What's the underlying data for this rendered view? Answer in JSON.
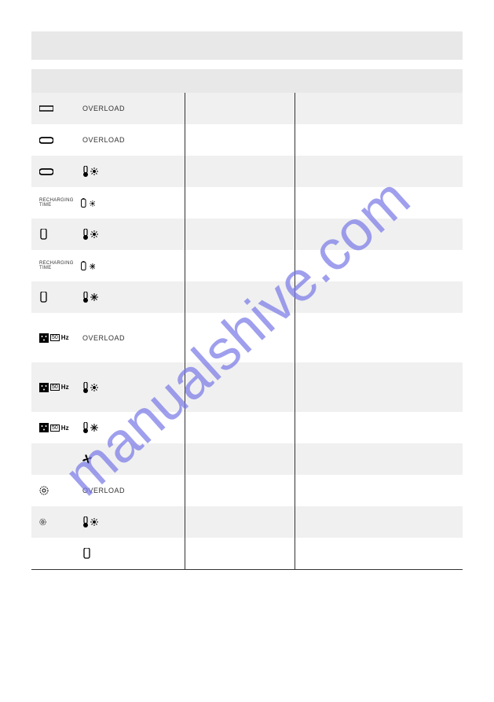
{
  "colors": {
    "row_gray": "#f0f0f0",
    "row_white": "#ffffff",
    "title_gray": "#e8e8e8",
    "border": "#333333",
    "watermark": "#7b7be8"
  },
  "watermark_text": "manualshive.com",
  "labels": {
    "overload": "OVERLOAD",
    "recharging_time": "RECHARGING TIME",
    "hz": "Hz"
  },
  "rows": [
    {
      "bg": "gray",
      "icon": "rect-open",
      "label_key": "overload"
    },
    {
      "bg": "white",
      "icon": "rect-round",
      "label_key": "overload"
    },
    {
      "bg": "gray",
      "icon": "rect-round",
      "label_key": "",
      "extra": "thermo-sun"
    },
    {
      "bg": "white",
      "icon": "recharging-thermo-sun",
      "label_key": ""
    },
    {
      "bg": "gray",
      "icon": "battery",
      "label_key": "",
      "extra": "thermo-sun"
    },
    {
      "bg": "white",
      "icon": "recharging-battery-snow",
      "label_key": ""
    },
    {
      "bg": "gray",
      "icon": "battery",
      "label_key": "",
      "extra": "thermo-snow"
    },
    {
      "bg": "white",
      "icon": "plug-hz",
      "label_key": "overload",
      "height": "tall"
    },
    {
      "bg": "gray",
      "icon": "plug-hz",
      "label_key": "",
      "extra": "thermo-sun",
      "height": "tall"
    },
    {
      "bg": "white",
      "icon": "plug-hz",
      "label_key": "",
      "extra": "thermo-snow"
    },
    {
      "bg": "gray",
      "icon": "",
      "label_key": "",
      "extra": "fan"
    },
    {
      "bg": "white",
      "icon": "gear",
      "label_key": "overload"
    },
    {
      "bg": "gray",
      "icon": "gear-small",
      "label_key": "",
      "extra": "thermo-sun"
    },
    {
      "bg": "white",
      "icon": "",
      "label_key": "",
      "extra": "battery"
    }
  ]
}
